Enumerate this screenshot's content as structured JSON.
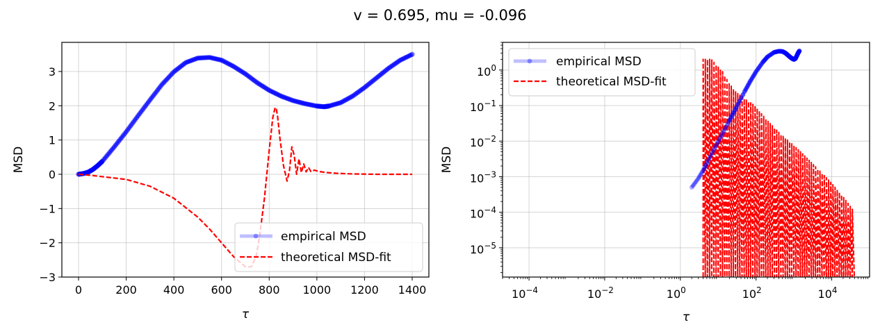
{
  "figure": {
    "title": "v = 0.695, mu = -0.096"
  },
  "chart_data": [
    {
      "type": "line",
      "xlabel": "τ",
      "ylabel": "MSD",
      "xlim": [
        -70,
        1470
      ],
      "ylim": [
        -3.0,
        3.85
      ],
      "xscale": "linear",
      "yscale": "linear",
      "xticks": [
        0,
        200,
        400,
        600,
        800,
        1000,
        1200,
        1400
      ],
      "xtick_labels": [
        "0",
        "200",
        "400",
        "600",
        "800",
        "1000",
        "1200",
        "1400"
      ],
      "yticks": [
        -3,
        -2,
        -1,
        0,
        1,
        2,
        3
      ],
      "ytick_labels": [
        "−3",
        "−2",
        "−1",
        "0",
        "1",
        "2",
        "3"
      ],
      "grid": true,
      "legend": "lower right",
      "series": [
        {
          "name": "empirical MSD",
          "style": "line-with-markers",
          "color": "#0000ff",
          "x": [
            0,
            20,
            40,
            60,
            80,
            100,
            150,
            200,
            250,
            300,
            350,
            400,
            450,
            500,
            550,
            600,
            650,
            700,
            750,
            800,
            850,
            900,
            950,
            1000,
            1030,
            1050,
            1100,
            1150,
            1200,
            1250,
            1300,
            1350,
            1400
          ],
          "y": [
            0.0,
            0.02,
            0.06,
            0.14,
            0.25,
            0.38,
            0.8,
            1.24,
            1.71,
            2.17,
            2.62,
            2.99,
            3.26,
            3.39,
            3.41,
            3.33,
            3.15,
            2.93,
            2.67,
            2.45,
            2.28,
            2.15,
            2.06,
            1.99,
            1.97,
            1.99,
            2.09,
            2.28,
            2.53,
            2.81,
            3.09,
            3.33,
            3.5
          ]
        },
        {
          "name": "theoretical MSD-fit",
          "style": "dashed",
          "color": "#ff0000",
          "x": [
            0,
            50,
            100,
            200,
            300,
            400,
            500,
            550,
            600,
            650,
            700,
            725,
            745,
            760,
            780,
            800,
            815,
            825,
            830,
            835,
            845,
            860,
            875,
            885,
            895,
            905,
            915,
            925,
            935,
            945,
            955,
            965,
            975,
            990,
            1010,
            1040,
            1080,
            1150,
            1250,
            1400
          ],
          "y": [
            0.0,
            -0.03,
            -0.07,
            -0.15,
            -0.35,
            -0.7,
            -1.25,
            -1.6,
            -2.0,
            -2.4,
            -2.7,
            -2.7,
            -2.4,
            -1.8,
            -0.7,
            0.7,
            1.65,
            1.95,
            1.9,
            1.7,
            1.05,
            0.25,
            -0.2,
            0.1,
            0.8,
            0.55,
            0.0,
            0.45,
            0.05,
            0.3,
            0.07,
            0.2,
            0.08,
            0.12,
            0.08,
            0.05,
            0.03,
            0.01,
            0.0,
            0.0
          ]
        }
      ]
    },
    {
      "type": "line",
      "xlabel": "τ",
      "ylabel": "MSD",
      "xscale": "log",
      "yscale": "log",
      "xlim": [
        2e-05,
        100000
      ],
      "ylim": [
        1.5e-06,
        6
      ],
      "xticks": [
        0.0001,
        0.01,
        1,
        100,
        10000
      ],
      "xtick_labels": [
        {
          "base": "10",
          "exp": "−4"
        },
        {
          "base": "10",
          "exp": "−2"
        },
        {
          "base": "10",
          "exp": "0"
        },
        {
          "base": "10",
          "exp": "2"
        },
        {
          "base": "10",
          "exp": "4"
        }
      ],
      "yticks": [
        1e-05,
        0.0001,
        0.001,
        0.01,
        0.1,
        1
      ],
      "ytick_labels": [
        {
          "base": "10",
          "exp": "−5"
        },
        {
          "base": "10",
          "exp": "−4"
        },
        {
          "base": "10",
          "exp": "−3"
        },
        {
          "base": "10",
          "exp": "−2"
        },
        {
          "base": "10",
          "exp": "−1"
        },
        {
          "base": "10",
          "exp": "0"
        }
      ],
      "grid": true,
      "legend": "top-left",
      "series": [
        {
          "name": "empirical MSD",
          "style": "line-with-markers",
          "color": "#0000ff",
          "x": [
            2,
            3,
            4,
            5,
            7,
            10,
            14,
            20,
            30,
            50,
            70,
            100,
            150,
            200,
            300,
            400,
            500,
            600,
            700,
            800,
            900,
            1000,
            1100,
            1200,
            1300,
            1400
          ],
          "y": [
            0.0005,
            0.0009,
            0.0015,
            0.0024,
            0.0048,
            0.0097,
            0.019,
            0.039,
            0.088,
            0.25,
            0.48,
            0.9,
            1.65,
            2.35,
            3.15,
            3.38,
            3.33,
            3.0,
            2.6,
            2.3,
            2.1,
            1.98,
            2.1,
            2.55,
            3.05,
            3.45
          ]
        },
        {
          "name": "theoretical MSD-fit",
          "style": "dashed",
          "color": "#ff0000",
          "envelope_x": [
            7,
            10,
            14,
            20,
            30,
            50,
            100,
            200,
            500,
            1000,
            2000,
            5000,
            10000,
            20000,
            40000
          ],
          "envelope_y": [
            2.0,
            1.3,
            0.9,
            0.45,
            0.25,
            0.16,
            0.1,
            0.04,
            0.015,
            0.008,
            0.004,
            0.0015,
            0.0007,
            0.0003,
            0.00011
          ],
          "x_range": [
            4,
            40000
          ]
        }
      ]
    }
  ]
}
